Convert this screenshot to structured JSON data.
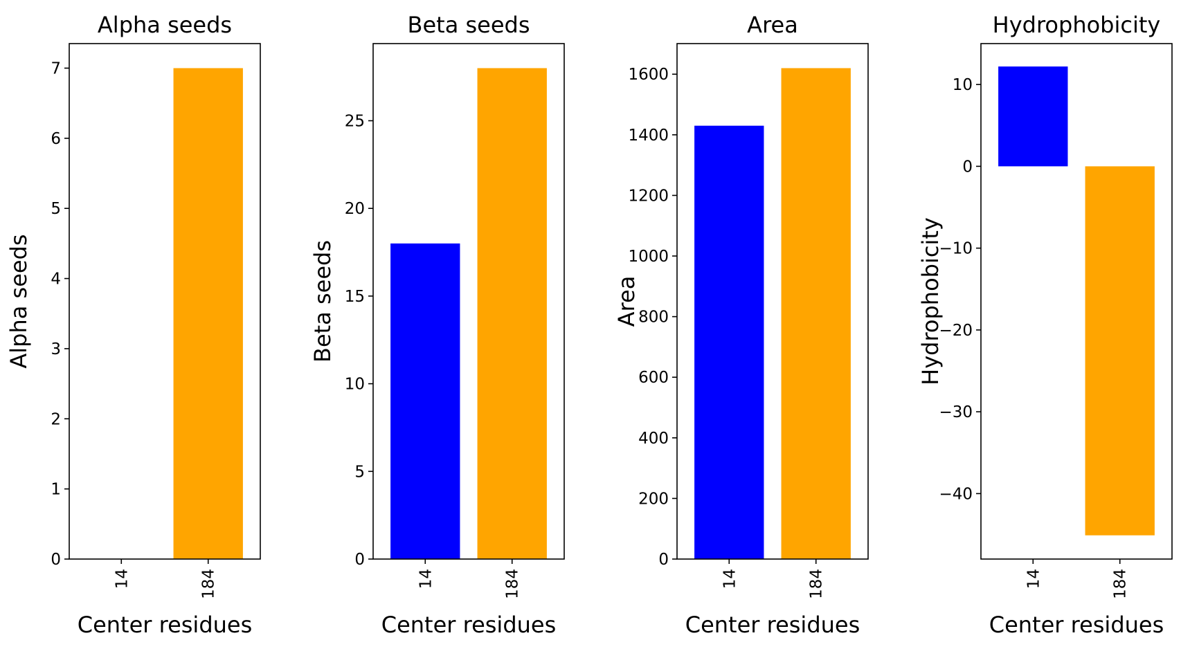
{
  "chart_data": [
    {
      "type": "bar",
      "title": "Alpha seeds",
      "xlabel": "Center residues",
      "ylabel": "Alpha seeds",
      "categories": [
        "14",
        "184"
      ],
      "values": [
        0,
        7
      ],
      "colors": [
        "#0000ff",
        "#ffa500"
      ],
      "ylim": [
        0,
        7.35
      ],
      "yticks": [
        0,
        1,
        2,
        3,
        4,
        5,
        6,
        7
      ],
      "ytick_labels": [
        "0",
        "1",
        "2",
        "3",
        "4",
        "5",
        "6",
        "7"
      ]
    },
    {
      "type": "bar",
      "title": "Beta seeds",
      "xlabel": "Center residues",
      "ylabel": "Beta seeds",
      "categories": [
        "14",
        "184"
      ],
      "values": [
        18,
        28
      ],
      "colors": [
        "#0000ff",
        "#ffa500"
      ],
      "ylim": [
        0,
        29.4
      ],
      "yticks": [
        0,
        5,
        10,
        15,
        20,
        25
      ],
      "ytick_labels": [
        "0",
        "5",
        "10",
        "15",
        "20",
        "25"
      ]
    },
    {
      "type": "bar",
      "title": "Area",
      "xlabel": "Center residues",
      "ylabel": "Area",
      "categories": [
        "14",
        "184"
      ],
      "values": [
        1430,
        1620
      ],
      "colors": [
        "#0000ff",
        "#ffa500"
      ],
      "ylim": [
        0,
        1701
      ],
      "yticks": [
        0,
        200,
        400,
        600,
        800,
        1000,
        1200,
        1400,
        1600
      ],
      "ytick_labels": [
        "0",
        "200",
        "400",
        "600",
        "800",
        "1000",
        "1200",
        "1400",
        "1600"
      ]
    },
    {
      "type": "bar",
      "title": "Hydrophobicity",
      "xlabel": "Center residues",
      "ylabel": "Hydrophobicity",
      "categories": [
        "14",
        "184"
      ],
      "values": [
        12.2,
        -45.1
      ],
      "colors": [
        "#0000ff",
        "#ffa500"
      ],
      "ylim": [
        -48,
        15
      ],
      "yticks": [
        10,
        0,
        -10,
        -20,
        -30,
        -40
      ],
      "ytick_labels": [
        "10",
        "0",
        "−10",
        "−20",
        "−30",
        "−40"
      ]
    }
  ]
}
